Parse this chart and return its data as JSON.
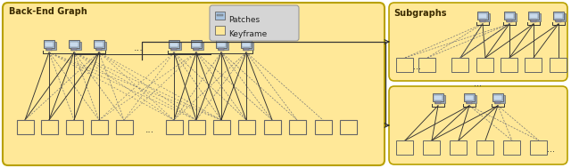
{
  "bg_color": "#FFE898",
  "border_color": "#B8A000",
  "blue": "#A8C4E0",
  "yellow": "#FFE898",
  "outline": "#666666",
  "lc": "#333333",
  "dc": "#777777",
  "tc": "#3a2a00",
  "title_main": "Back-End Graph",
  "title_sub": "Subgraphs",
  "leg_patches": "Patches",
  "leg_keyframe": "Keyframe",
  "figsize": [
    6.4,
    1.89
  ],
  "dpi": 100
}
